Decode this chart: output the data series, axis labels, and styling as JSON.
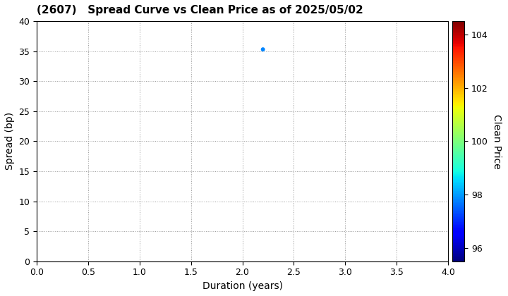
{
  "title": "(2607)   Spread Curve vs Clean Price as of 2025/05/02",
  "xlabel": "Duration (years)",
  "ylabel": "Spread (bp)",
  "colorbar_label": "Clean Price",
  "xlim": [
    0.0,
    4.0
  ],
  "ylim": [
    0,
    40
  ],
  "xticks": [
    0.0,
    0.5,
    1.0,
    1.5,
    2.0,
    2.5,
    3.0,
    3.5,
    4.0
  ],
  "yticks": [
    0,
    5,
    10,
    15,
    20,
    25,
    30,
    35,
    40
  ],
  "colorbar_ticks": [
    96,
    98,
    100,
    102,
    104
  ],
  "colorbar_vmin": 95.5,
  "colorbar_vmax": 104.5,
  "scatter_x": [
    2.2
  ],
  "scatter_y": [
    35.3
  ],
  "scatter_price": [
    97.8
  ],
  "scatter_size": 18,
  "background_color": "#ffffff",
  "grid_color": "#999999",
  "title_fontsize": 11,
  "label_fontsize": 10,
  "tick_fontsize": 9
}
